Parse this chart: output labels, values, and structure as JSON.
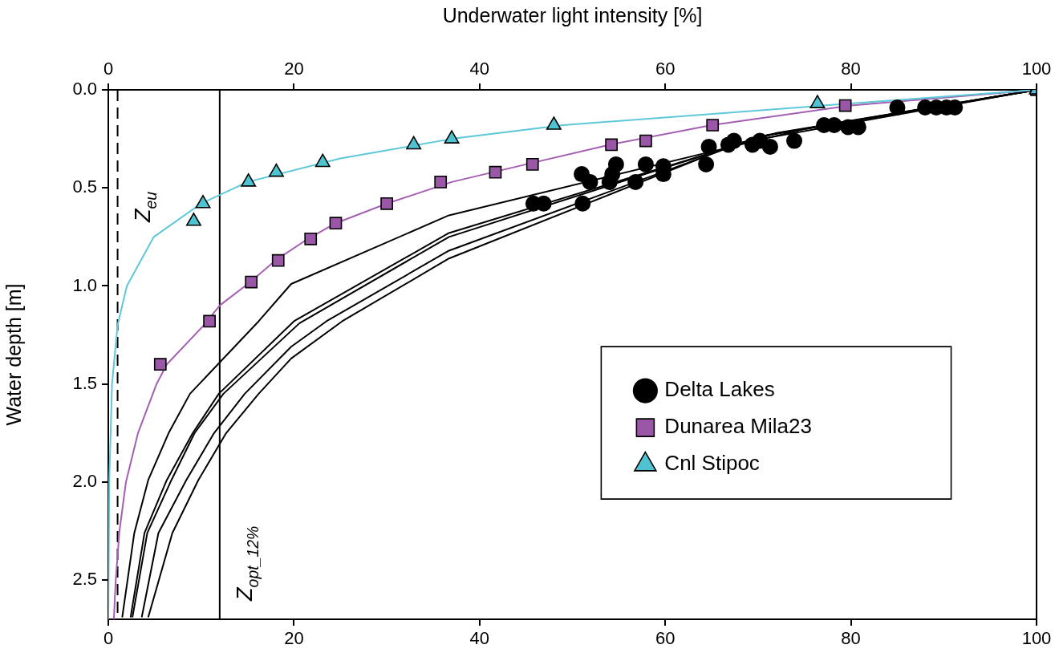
{
  "chart_data": {
    "type": "scatter",
    "x2label": "Underwater light intensity [%]",
    "ylabel": "Water depth [m]",
    "xlim": [
      0,
      100
    ],
    "xticks": [
      0,
      20,
      40,
      60,
      80,
      100
    ],
    "x2lim": [
      0,
      100
    ],
    "x2ticks": [
      0,
      20,
      40,
      60,
      80,
      100
    ],
    "ylim": [
      2.7,
      0
    ],
    "yticks": [
      {
        "value": 0,
        "label": "0.0"
      },
      {
        "value": 0.5,
        "label": "0.5"
      },
      {
        "value": 1,
        "label": "1.0"
      },
      {
        "value": 1.5,
        "label": "1.5"
      },
      {
        "value": 2,
        "label": "2.0"
      },
      {
        "value": 2.5,
        "label": "2.5"
      }
    ],
    "grid": false,
    "legend": "right",
    "ref_lines": [
      {
        "axis": "x",
        "value": 1,
        "label": "Z$_{eu}$",
        "line_style": "dashed",
        "color": "#000000"
      },
      {
        "axis": "x",
        "value": 12,
        "label": "Z$_{opt_12%}$",
        "line_style": "solid",
        "color": "#000000"
      }
    ],
    "series": [
      {
        "name": "Delta Lakes",
        "marker": "circle",
        "color": "#000000",
        "x": [
          85.0,
          88.0,
          89.2,
          90.3,
          91.2,
          77.1,
          78.2,
          79.7,
          80.8,
          64.7,
          66.8,
          67.4,
          69.4,
          70.2,
          71.3,
          73.9,
          54.7,
          57.9,
          64.4,
          59.8,
          54.3,
          51.0,
          59.8,
          54.0,
          51.9,
          56.8,
          45.8,
          46.9,
          51.1
        ],
        "values": [
          0.09,
          0.09,
          0.09,
          0.09,
          0.09,
          0.18,
          0.18,
          0.19,
          0.19,
          0.29,
          0.28,
          0.26,
          0.28,
          0.26,
          0.29,
          0.26,
          0.38,
          0.38,
          0.38,
          0.39,
          0.43,
          0.43,
          0.43,
          0.47,
          0.47,
          0.47,
          0.58,
          0.58,
          0.58
        ]
      },
      {
        "name": "Dunarea Mila23",
        "marker": "square",
        "color": "#9b57a7",
        "x": [
          100,
          79.4,
          65.1,
          57.9,
          54.2,
          45.7,
          41.7,
          35.8,
          30.0,
          24.5,
          21.8,
          18.3,
          15.4,
          10.9,
          5.6
        ],
        "values": [
          0,
          0.08,
          0.18,
          0.26,
          0.28,
          0.38,
          0.42,
          0.47,
          0.58,
          0.68,
          0.76,
          0.87,
          0.98,
          1.18,
          1.4
        ]
      },
      {
        "name": "Cnl Stipoc",
        "marker": "triangle",
        "color": "#4fc3d2",
        "x": [
          100,
          76.4,
          48,
          37,
          32.9,
          23.1,
          18.1,
          15.1,
          10.2,
          9.2
        ],
        "values": [
          0,
          0.07,
          0.18,
          0.25,
          0.28,
          0.37,
          0.42,
          0.47,
          0.58,
          0.67
        ]
      },
      {
        "type": "line",
        "marker": "none",
        "color": "#5cc8d8",
        "x": [
          100,
          77,
          49,
          37,
          25,
          15,
          10,
          4.9,
          2,
          1,
          0.4,
          0.1,
          0
        ],
        "values": [
          0,
          0.08,
          0.18,
          0.25,
          0.35,
          0.47,
          0.58,
          0.75,
          1,
          1.2,
          1.5,
          2,
          2.7
        ]
      },
      {
        "type": "line",
        "marker": "none",
        "color": "#a45fb2",
        "x": [
          100,
          80,
          65,
          54,
          45,
          37,
          30,
          24.5,
          21.5,
          18,
          15.3,
          12,
          10.3,
          6.3,
          5.2,
          3.2,
          1.9,
          1.2,
          0.8,
          0.6
        ],
        "values": [
          0,
          0.08,
          0.18,
          0.28,
          0.38,
          0.47,
          0.58,
          0.68,
          0.76,
          0.87,
          0.98,
          1.1,
          1.2,
          1.4,
          1.5,
          1.75,
          2,
          2.25,
          2.5,
          2.7
        ]
      },
      {
        "type": "line",
        "marker": "none",
        "color": "#000000",
        "x": [
          100,
          75,
          36.7,
          19.7,
          16.2,
          8.8,
          6.5,
          4.3,
          2.8,
          1.5
        ],
        "values": [
          0,
          0.2,
          0.64,
          0.99,
          1.18,
          1.55,
          1.75,
          1.99,
          2.26,
          2.69
        ]
      },
      {
        "type": "line",
        "marker": "none",
        "color": "#000000",
        "x": [
          100,
          72,
          36.7,
          20.0,
          11.9,
          9.1,
          6.3,
          3.9,
          2.4
        ],
        "values": [
          0,
          0.22,
          0.73,
          1.18,
          1.55,
          1.75,
          1.99,
          2.26,
          2.69
        ]
      },
      {
        "type": "line",
        "marker": "none",
        "color": "#000000",
        "x": [
          100,
          71,
          36.7,
          20.6,
          12.4,
          9.3,
          6.8,
          4.2,
          2.6
        ],
        "values": [
          0,
          0.23,
          0.75,
          1.19,
          1.55,
          1.75,
          1.99,
          2.26,
          2.69
        ]
      },
      {
        "type": "line",
        "marker": "none",
        "color": "#000000",
        "x": [
          100,
          70,
          36.7,
          23.5,
          19.7,
          14.7,
          11.4,
          8.4,
          5.4,
          3.6
        ],
        "values": [
          0,
          0.24,
          0.82,
          1.18,
          1.31,
          1.55,
          1.75,
          1.99,
          2.26,
          2.69
        ]
      },
      {
        "type": "line",
        "marker": "none",
        "color": "#000000",
        "x": [
          100,
          68,
          36.7,
          25.2,
          19.7,
          16.2,
          12.7,
          9.7,
          6.9,
          4.3
        ],
        "values": [
          0,
          0.27,
          0.86,
          1.18,
          1.37,
          1.55,
          1.75,
          1.99,
          2.26,
          2.69
        ]
      }
    ]
  }
}
